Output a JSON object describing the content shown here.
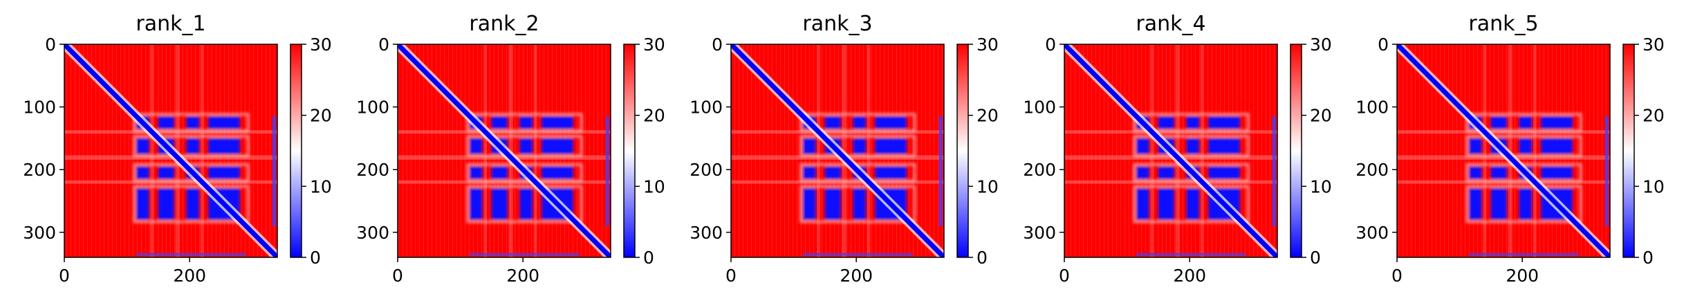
{
  "chart_data": [
    {
      "type": "heatmap",
      "title": "rank_1",
      "x_ticks": [
        0,
        200
      ],
      "y_ticks": [
        0,
        100,
        200,
        300
      ],
      "colorbar_ticks": [
        0,
        10,
        20,
        30
      ],
      "xlim": [
        0,
        340
      ],
      "ylim": [
        340,
        0
      ],
      "clim": [
        0,
        30
      ],
      "colormap": "bwr",
      "blocks": [
        [
          115,
          290
        ],
        [
          115,
          135
        ],
        [
          150,
          175
        ],
        [
          195,
          215
        ],
        [
          230,
          280
        ]
      ],
      "gaps": [
        [
          135,
          150
        ],
        [
          175,
          195
        ],
        [
          215,
          230
        ]
      ],
      "values_description_free": true
    },
    {
      "type": "heatmap",
      "title": "rank_2",
      "x_ticks": [
        0,
        200
      ],
      "y_ticks": [
        0,
        100,
        200,
        300
      ],
      "colorbar_ticks": [
        0,
        10,
        20,
        30
      ],
      "xlim": [
        0,
        340
      ],
      "ylim": [
        340,
        0
      ],
      "clim": [
        0,
        30
      ],
      "colormap": "bwr",
      "blocks": [
        [
          115,
          290
        ],
        [
          115,
          135
        ],
        [
          150,
          175
        ],
        [
          195,
          215
        ],
        [
          230,
          280
        ]
      ],
      "gaps": [
        [
          135,
          150
        ],
        [
          175,
          195
        ],
        [
          215,
          230
        ]
      ],
      "values_description_free": true
    },
    {
      "type": "heatmap",
      "title": "rank_3",
      "x_ticks": [
        0,
        200
      ],
      "y_ticks": [
        0,
        100,
        200,
        300
      ],
      "colorbar_ticks": [
        0,
        10,
        20,
        30
      ],
      "xlim": [
        0,
        340
      ],
      "ylim": [
        340,
        0
      ],
      "clim": [
        0,
        30
      ],
      "colormap": "bwr",
      "blocks": [
        [
          115,
          290
        ],
        [
          115,
          135
        ],
        [
          150,
          175
        ],
        [
          195,
          215
        ],
        [
          230,
          280
        ]
      ],
      "gaps": [
        [
          135,
          150
        ],
        [
          175,
          195
        ],
        [
          215,
          230
        ]
      ],
      "values_description_free": true
    },
    {
      "type": "heatmap",
      "title": "rank_4",
      "x_ticks": [
        0,
        200
      ],
      "y_ticks": [
        0,
        100,
        200,
        300
      ],
      "colorbar_ticks": [
        0,
        10,
        20,
        30
      ],
      "xlim": [
        0,
        340
      ],
      "ylim": [
        340,
        0
      ],
      "clim": [
        0,
        30
      ],
      "colormap": "bwr",
      "blocks": [
        [
          115,
          290
        ],
        [
          115,
          135
        ],
        [
          150,
          175
        ],
        [
          195,
          215
        ],
        [
          230,
          280
        ]
      ],
      "gaps": [
        [
          135,
          150
        ],
        [
          175,
          195
        ],
        [
          215,
          230
        ]
      ],
      "values_description_free": true
    },
    {
      "type": "heatmap",
      "title": "rank_5",
      "x_ticks": [
        0,
        200
      ],
      "y_ticks": [
        0,
        100,
        200,
        300
      ],
      "colorbar_ticks": [
        0,
        10,
        20,
        30
      ],
      "xlim": [
        0,
        340
      ],
      "ylim": [
        340,
        0
      ],
      "clim": [
        0,
        30
      ],
      "colormap": "bwr",
      "blocks": [
        [
          115,
          290
        ],
        [
          115,
          135
        ],
        [
          150,
          175
        ],
        [
          195,
          215
        ],
        [
          230,
          280
        ]
      ],
      "gaps": [
        [
          135,
          150
        ],
        [
          175,
          195
        ],
        [
          215,
          230
        ]
      ],
      "values_description_free": true
    }
  ],
  "colors": {
    "low": "#0000ff",
    "mid": "#ffffff",
    "high": "#ff0000"
  }
}
